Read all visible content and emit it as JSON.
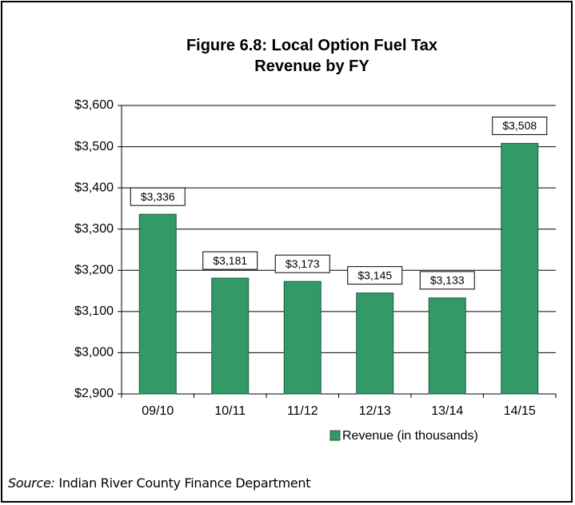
{
  "chart_data": {
    "type": "bar",
    "title": "Figure 6.8: Local Option Fuel Tax Revenue by FY",
    "categories": [
      "09/10",
      "10/11",
      "11/12",
      "12/13",
      "13/14",
      "14/15"
    ],
    "series": [
      {
        "name": "Revenue (in thousands)",
        "color": "#339966",
        "values": [
          3336,
          3181,
          3173,
          3145,
          3133,
          3508
        ],
        "value_labels": [
          "$3,336",
          "$3,181",
          "$3,173",
          "$3,145",
          "$3,133",
          "$3,508"
        ]
      }
    ],
    "ylim": [
      2900,
      3600
    ],
    "yticks": [
      {
        "value": 2900,
        "label": "$2,900"
      },
      {
        "value": 3000,
        "label": "$3,000"
      },
      {
        "value": 3100,
        "label": "$3,100"
      },
      {
        "value": 3200,
        "label": "$3,200"
      },
      {
        "value": 3300,
        "label": "$3,300"
      },
      {
        "value": 3400,
        "label": "$3,400"
      },
      {
        "value": 3500,
        "label": "$3,500"
      },
      {
        "value": 3600,
        "label": "$3,600"
      }
    ],
    "grid": true,
    "legend": "bottom-right",
    "source_label": "Source:",
    "source_text": "Indian River County Finance Department"
  }
}
